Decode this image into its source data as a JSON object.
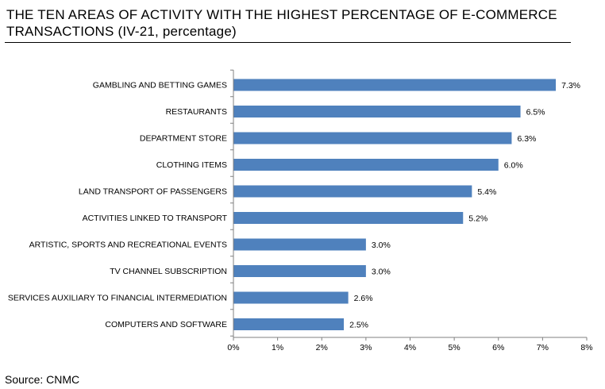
{
  "title": "THE TEN AREAS OF ACTIVITY WITH THE HIGHEST PERCENTAGE OF E-COMMERCE TRANSACTIONS (IV-21, percentage)",
  "source": "Source: CNMC",
  "chart_data": {
    "type": "bar",
    "orientation": "horizontal",
    "title": "THE TEN AREAS OF ACTIVITY WITH THE HIGHEST PERCENTAGE OF E-COMMERCE TRANSACTIONS (IV-21, percentage)",
    "categories": [
      "GAMBLING AND BETTING GAMES",
      "RESTAURANTS",
      "DEPARTMENT STORE",
      "CLOTHING ITEMS",
      "LAND TRANSPORT OF PASSENGERS",
      "ACTIVITIES LINKED TO TRANSPORT",
      "ARTISTIC, SPORTS AND RECREATIONAL EVENTS",
      "TV CHANNEL SUBSCRIPTION",
      "SERVICES AUXILIARY TO FINANCIAL INTERMEDIATION",
      "COMPUTERS AND SOFTWARE"
    ],
    "values": [
      7.3,
      6.5,
      6.3,
      6.0,
      5.4,
      5.2,
      3.0,
      3.0,
      2.6,
      2.5
    ],
    "value_labels": [
      "7.3%",
      "6.5%",
      "6.3%",
      "6.0%",
      "5.4%",
      "5.2%",
      "3.0%",
      "3.0%",
      "2.6%",
      "2.5%"
    ],
    "x_ticks": [
      "0%",
      "1%",
      "2%",
      "3%",
      "4%",
      "5%",
      "6%",
      "7%",
      "8%"
    ],
    "xlim": [
      0,
      8
    ],
    "xlabel": "",
    "ylabel": "",
    "grid": false,
    "legend": false,
    "bar_color": "#4f81bd",
    "axis_color": "#808080"
  }
}
